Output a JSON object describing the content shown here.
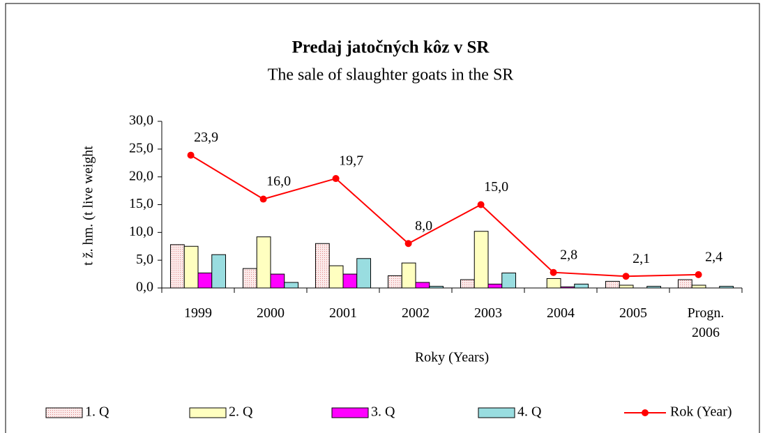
{
  "chart_data": {
    "type": "bar",
    "title": "Predaj jatočných kôz v SR",
    "subtitle": "The sale of slaughter goats in the SR",
    "y_label": "t ž. hm. (t live weight",
    "x_label": "Roky (Years)",
    "categories": [
      "1999",
      "2000",
      "2001",
      "2002",
      "2003",
      "2004",
      "2005",
      "Progn. 2006"
    ],
    "series": [
      {
        "name": "1. Q",
        "color": "#f7d9d9",
        "values": [
          7.8,
          3.5,
          8.0,
          2.2,
          1.5,
          0,
          1.2,
          1.5
        ]
      },
      {
        "name": "2. Q",
        "color": "#ffffc0",
        "values": [
          7.5,
          9.2,
          4.0,
          4.5,
          10.2,
          1.7,
          0.5,
          0.5
        ]
      },
      {
        "name": "3. Q",
        "color": "#ff00ff",
        "values": [
          2.7,
          2.5,
          2.5,
          1.0,
          0.7,
          0.2,
          0,
          0
        ]
      },
      {
        "name": "4. Q",
        "color": "#99dde0",
        "values": [
          6.0,
          1.0,
          5.3,
          0.3,
          2.7,
          0.7,
          0.3,
          0.3
        ]
      },
      {
        "name": "Rok (Year)",
        "type": "line",
        "color": "#ff0000",
        "values": [
          23.9,
          16.0,
          19.7,
          8.0,
          15.0,
          2.8,
          2.1,
          2.4
        ],
        "value_labels": [
          "23,9",
          "16,0",
          "19,7",
          "8,0",
          "15,0",
          "2,8",
          "2,1",
          "2,4"
        ]
      }
    ],
    "ylim": [
      0,
      30
    ],
    "yticks": [
      {
        "value": 0,
        "label": "0,0"
      },
      {
        "value": 5,
        "label": "5,0"
      },
      {
        "value": 10,
        "label": "10,0"
      },
      {
        "value": 15,
        "label": "15,0"
      },
      {
        "value": 20,
        "label": "20,0"
      },
      {
        "value": 25,
        "label": "25,0"
      },
      {
        "value": 30,
        "label": "30,0"
      }
    ],
    "legend": "bottom"
  }
}
